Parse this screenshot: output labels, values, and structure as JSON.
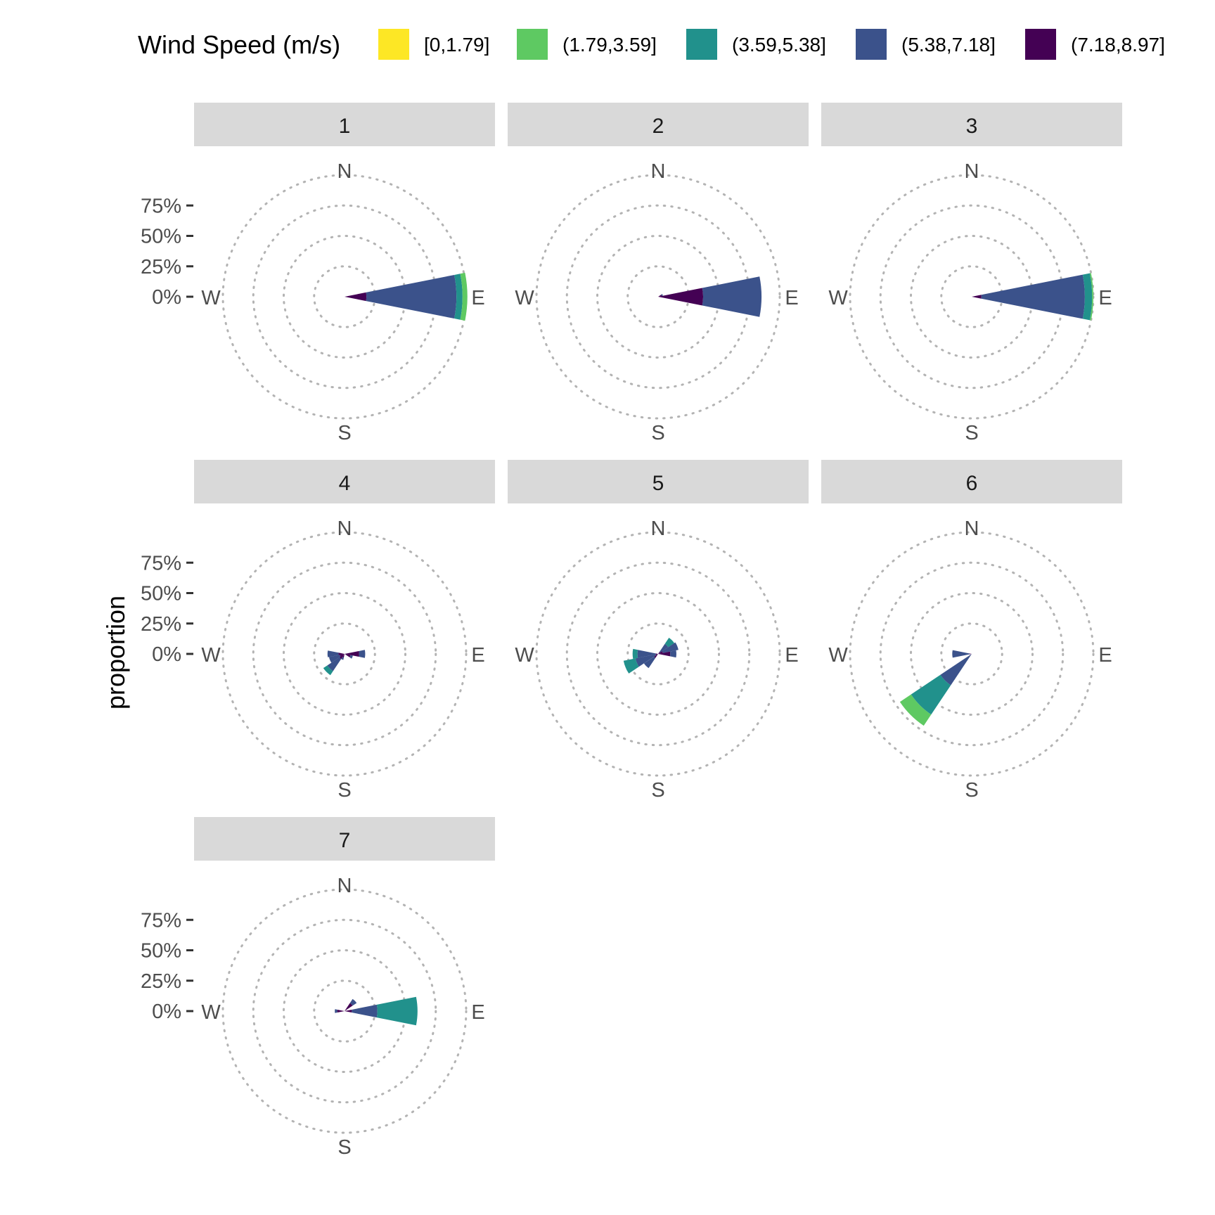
{
  "chart_data": {
    "type": "wind-rose",
    "ylabel": "proportion",
    "legend": {
      "title": "Wind Speed (m/s)",
      "placement": "top",
      "items": [
        {
          "label": "[0,1.79]",
          "color": "#fde725"
        },
        {
          "label": "(1.79,3.59]",
          "color": "#5ec962"
        },
        {
          "label": "(3.59,5.38]",
          "color": "#21918c"
        },
        {
          "label": "(5.38,7.18]",
          "color": "#3b528b"
        },
        {
          "label": "(7.18,8.97]",
          "color": "#440154"
        }
      ]
    },
    "y_ticks": [
      "0%",
      "25%",
      "50%",
      "75%"
    ],
    "ylim": [
      0,
      1
    ],
    "compass_labels": {
      "n": "N",
      "e": "E",
      "s": "S",
      "w": "W"
    },
    "sector_width_deg": 22.5,
    "panels": [
      {
        "label": "1",
        "sectors": [
          {
            "dir": 90,
            "values": [
              0,
              0.04,
              0.05,
              0.74,
              0.18
            ]
          }
        ]
      },
      {
        "label": "2",
        "sectors": [
          {
            "dir": 90,
            "values": [
              0,
              0,
              0,
              0.48,
              0.37
            ]
          },
          {
            "dir": 67.5,
            "values": [
              0,
              0,
              0,
              0.01,
              0.03
            ]
          }
        ]
      },
      {
        "label": "3",
        "sectors": [
          {
            "dir": 90,
            "values": [
              0,
              0.01,
              0.06,
              0.85,
              0.08
            ]
          }
        ]
      },
      {
        "label": "4",
        "sectors": [
          {
            "dir": 90,
            "values": [
              0,
              0,
              0,
              0.05,
              0.12
            ]
          },
          {
            "dir": 112.5,
            "values": [
              0,
              0,
              0,
              0.02,
              0.05
            ]
          },
          {
            "dir": 202.5,
            "values": [
              0,
              0,
              0,
              0.02,
              0.03
            ]
          },
          {
            "dir": 225,
            "values": [
              0,
              0,
              0.04,
              0.12,
              0.05
            ]
          },
          {
            "dir": 247.5,
            "values": [
              0,
              0,
              0,
              0.09,
              0.04
            ]
          },
          {
            "dir": 270,
            "values": [
              0,
              0,
              0,
              0.09,
              0.05
            ]
          }
        ]
      },
      {
        "label": "5",
        "sectors": [
          {
            "dir": 45,
            "values": [
              0,
              0,
              0.06,
              0.08,
              0.02
            ]
          },
          {
            "dir": 67.5,
            "values": [
              0,
              0,
              0,
              0.13,
              0.04
            ]
          },
          {
            "dir": 90,
            "values": [
              0,
              0,
              0,
              0.05,
              0.1
            ]
          },
          {
            "dir": 225,
            "values": [
              0,
              0,
              0,
              0.1,
              0.04
            ]
          },
          {
            "dir": 247.5,
            "values": [
              0,
              0,
              0.1,
              0.17,
              0.02
            ]
          },
          {
            "dir": 270,
            "values": [
              0,
              0,
              0.04,
              0.15,
              0.02
            ]
          }
        ]
      },
      {
        "label": "6",
        "sectors": [
          {
            "dir": 225,
            "values": [
              0,
              0.11,
              0.29,
              0.31,
              0
            ]
          },
          {
            "dir": 270,
            "values": [
              0,
              0,
              0,
              0.14,
              0.02
            ]
          }
        ]
      },
      {
        "label": "7",
        "sectors": [
          {
            "dir": 45,
            "values": [
              0,
              0,
              0,
              0.04,
              0.08
            ]
          },
          {
            "dir": 90,
            "values": [
              0,
              0,
              0.33,
              0.21,
              0.06
            ]
          },
          {
            "dir": 270,
            "values": [
              0,
              0,
              0,
              0.02,
              0.06
            ]
          }
        ]
      }
    ]
  }
}
